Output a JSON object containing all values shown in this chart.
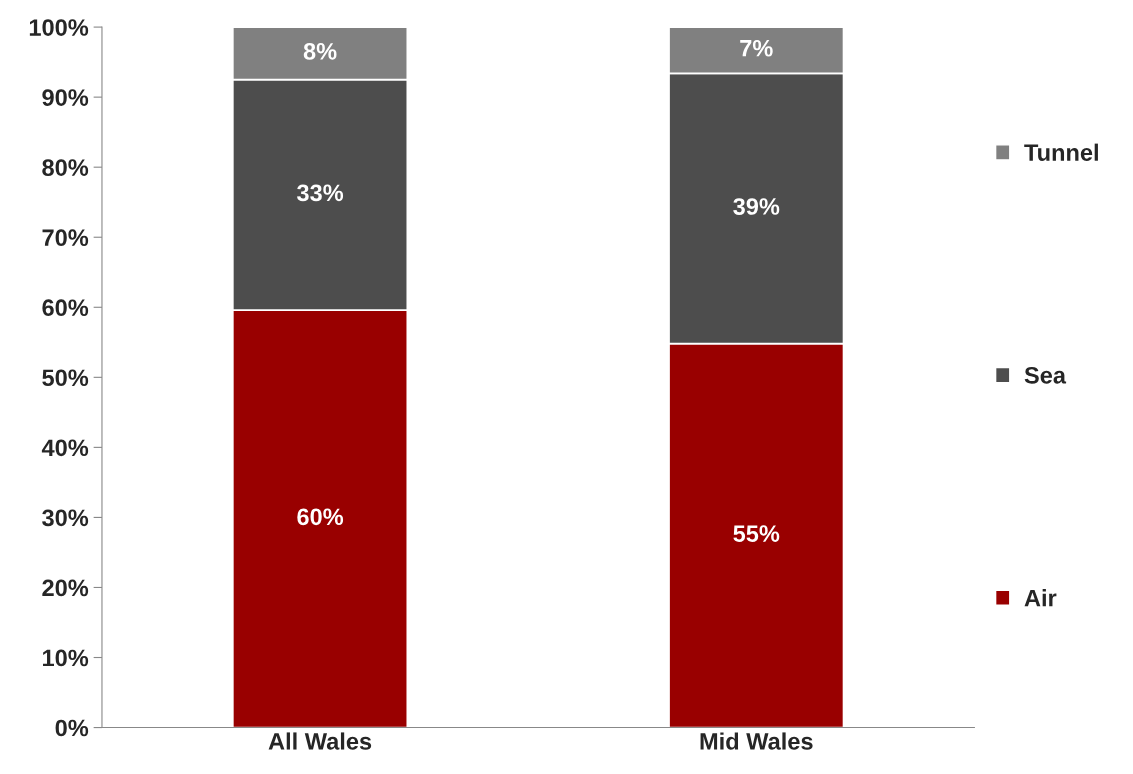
{
  "chart_data": {
    "type": "bar",
    "stacked": true,
    "categories": [
      "All Wales",
      "Mid Wales"
    ],
    "series": [
      {
        "name": "Air",
        "color": "#990000",
        "values": [
          59.6,
          54.8
        ],
        "value_labels": [
          "60%",
          "55%"
        ]
      },
      {
        "name": "Sea",
        "color": "#4d4d4d",
        "values": [
          32.9,
          38.6
        ],
        "value_labels": [
          "33%",
          "39%"
        ]
      },
      {
        "name": "Tunnel",
        "color": "#808080",
        "values": [
          7.5,
          6.6
        ],
        "value_labels": [
          "8%",
          "7%"
        ]
      }
    ],
    "ylim": [
      0,
      100
    ],
    "yticks": [
      {
        "value": 0,
        "label": "0%"
      },
      {
        "value": 10,
        "label": "10%"
      },
      {
        "value": 20,
        "label": "20%"
      },
      {
        "value": 30,
        "label": "30%"
      },
      {
        "value": 40,
        "label": "40%"
      },
      {
        "value": 50,
        "label": "50%"
      },
      {
        "value": 60,
        "label": "60%"
      },
      {
        "value": 70,
        "label": "70%"
      },
      {
        "value": 80,
        "label": "80%"
      },
      {
        "value": 90,
        "label": "90%"
      },
      {
        "value": 100,
        "label": "100%"
      }
    ],
    "grid": false,
    "legend": "right"
  }
}
